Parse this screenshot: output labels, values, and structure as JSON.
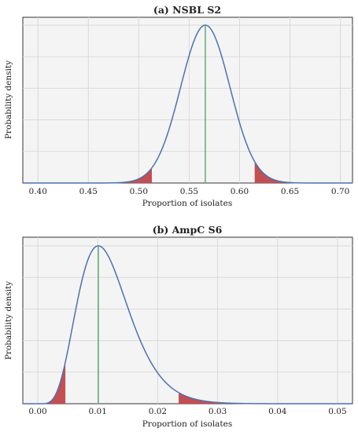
{
  "chart_data": [
    {
      "type": "area",
      "title": "(a) NSBL S2",
      "xlabel": "Proportion of isolates",
      "ylabel": "Probability density",
      "xlim": [
        0.385,
        0.712
      ],
      "x_ticks": [
        0.4,
        0.45,
        0.5,
        0.55,
        0.6,
        0.65,
        0.7
      ],
      "x_tick_labels": [
        "0.40",
        "0.45",
        "0.50",
        "0.55",
        "0.60",
        "0.65",
        "0.70"
      ],
      "y_tick_labels_shown": false,
      "grid": true,
      "distribution": {
        "shape": "bell-curve",
        "mode": 0.566,
        "spread_sd": 0.0245
      },
      "mode_line_x": 0.566,
      "shaded_tails": [
        [
          0.385,
          0.513
        ],
        [
          0.615,
          0.712
        ]
      ],
      "colors": {
        "curve": "#4c72b0",
        "mode_line": "#55a868",
        "tail_fill": "#c44e52",
        "background": "#f4f4f4",
        "grid": "#d9d9d9"
      }
    },
    {
      "type": "area",
      "title": "(b) AmpC S6",
      "xlabel": "Proportion of isolates",
      "ylabel": "Probability density",
      "xlim": [
        -0.0025,
        0.0525
      ],
      "x_ticks": [
        0.0,
        0.01,
        0.02,
        0.03,
        0.04,
        0.05
      ],
      "x_tick_labels": [
        "0.00",
        "0.01",
        "0.02",
        "0.03",
        "0.04",
        "0.05"
      ],
      "y_tick_labels_shown": false,
      "grid": true,
      "distribution": {
        "shape": "right-skewed",
        "mode": 0.0101,
        "shape_k": 6.5
      },
      "mode_line_x": 0.0101,
      "shaded_tails": [
        [
          -0.0025,
          0.0046
        ],
        [
          0.0235,
          0.0525
        ]
      ],
      "colors": {
        "curve": "#4c72b0",
        "mode_line": "#55a868",
        "tail_fill": "#c44e52",
        "background": "#f4f4f4",
        "grid": "#d9d9d9"
      }
    }
  ]
}
